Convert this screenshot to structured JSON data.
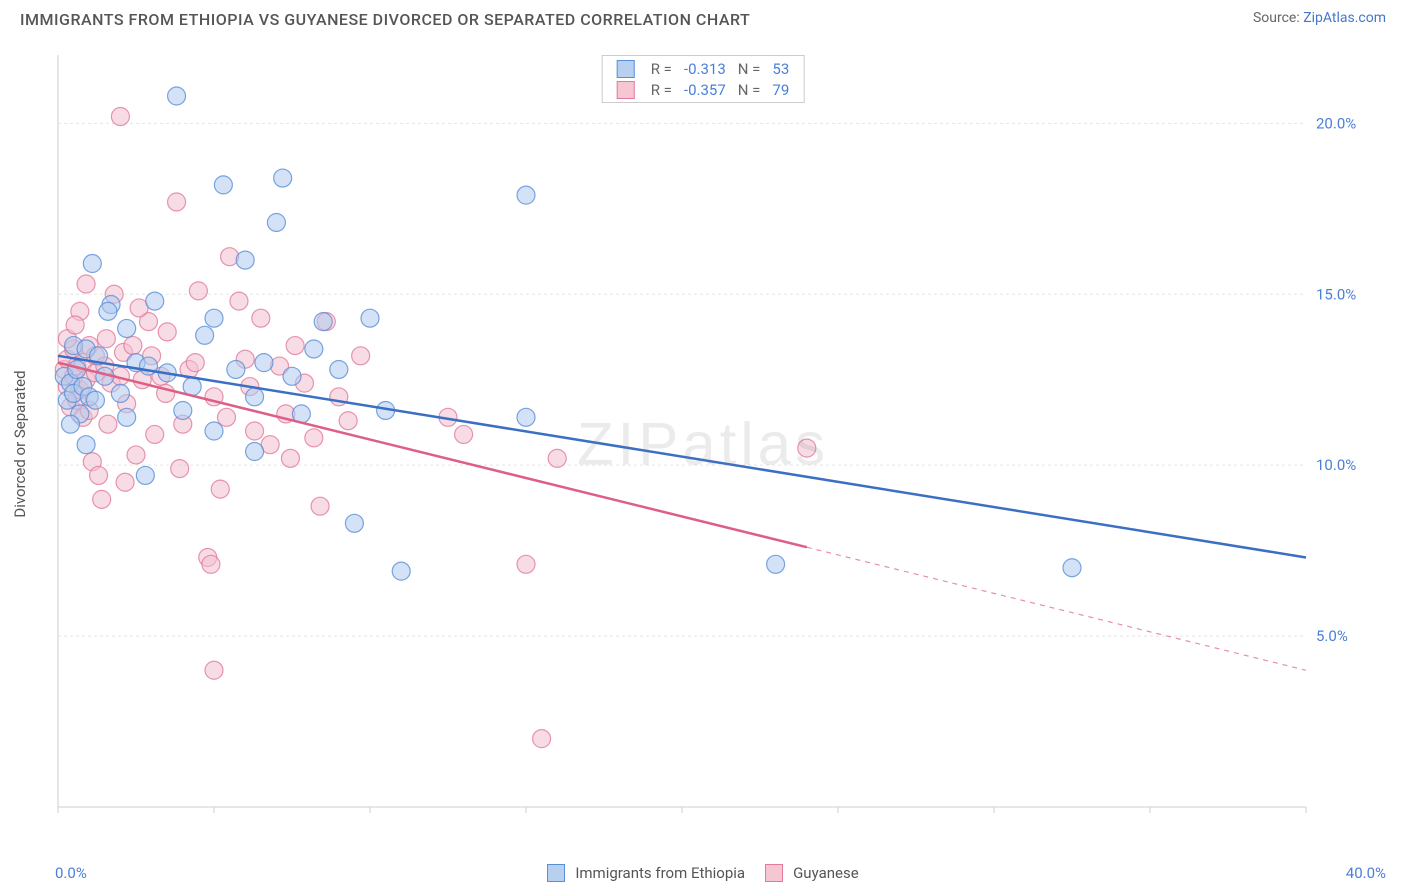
{
  "header": {
    "title": "IMMIGRANTS FROM ETHIOPIA VS GUYANESE DIVORCED OR SEPARATED CORRELATION CHART",
    "source_prefix": "Source: ",
    "source_name": "ZipAtlas.com"
  },
  "chart": {
    "type": "scatter",
    "ylabel": "Divorced or Separated",
    "watermark": "ZIPatlas",
    "background_color": "#ffffff",
    "grid_color": "#e5e5e5",
    "axis_color": "#cccccc",
    "tick_label_color": "#4a7fd8",
    "title_fontsize": 16,
    "label_fontsize": 15,
    "xlim": [
      0,
      40
    ],
    "ylim": [
      0,
      22
    ],
    "xticks": [
      0,
      5,
      10,
      15,
      20,
      25,
      30,
      35,
      40
    ],
    "yticks": [
      5,
      10,
      15,
      20
    ],
    "ytick_labels": [
      "5.0%",
      "10.0%",
      "15.0%",
      "20.0%"
    ],
    "xmin_label": "0.0%",
    "xmax_label": "40.0%",
    "marker_radius": 9,
    "marker_opacity": 0.55,
    "line_width": 2.5,
    "legend_top": {
      "rows": [
        {
          "color_fill": "#b8d0ef",
          "color_stroke": "#5a8fd8",
          "r_label": "R =",
          "r": "-0.313",
          "n_label": "N =",
          "n": "53"
        },
        {
          "color_fill": "#f6c6d3",
          "color_stroke": "#e47a9a",
          "r_label": "R =",
          "r": "-0.357",
          "n_label": "N =",
          "n": "79"
        }
      ]
    },
    "series": [
      {
        "name": "Immigrants from Ethiopia",
        "stroke": "#5a8fd8",
        "fill": "#aecbef",
        "line_color": "#3b6fc4",
        "regression": {
          "x1": 0,
          "y1": 13.2,
          "x2": 40,
          "y2": 7.3,
          "solid_until_x": 40
        },
        "points": [
          [
            0.2,
            12.6
          ],
          [
            0.3,
            11.9
          ],
          [
            0.4,
            12.4
          ],
          [
            0.5,
            13.5
          ],
          [
            0.5,
            12.1
          ],
          [
            0.6,
            12.8
          ],
          [
            0.7,
            11.5
          ],
          [
            0.8,
            12.3
          ],
          [
            0.9,
            13.4
          ],
          [
            1.0,
            12.0
          ],
          [
            1.1,
            15.9
          ],
          [
            1.3,
            13.2
          ],
          [
            1.5,
            12.6
          ],
          [
            1.7,
            14.7
          ],
          [
            2.0,
            12.1
          ],
          [
            2.2,
            11.4
          ],
          [
            2.5,
            13.0
          ],
          [
            2.8,
            9.7
          ],
          [
            3.1,
            14.8
          ],
          [
            3.5,
            12.7
          ],
          [
            3.8,
            20.8
          ],
          [
            4.3,
            12.3
          ],
          [
            4.7,
            13.8
          ],
          [
            5.0,
            11.0
          ],
          [
            5.3,
            18.2
          ],
          [
            5.7,
            12.8
          ],
          [
            6.0,
            16.0
          ],
          [
            6.3,
            10.4
          ],
          [
            6.6,
            13.0
          ],
          [
            7.0,
            17.1
          ],
          [
            7.2,
            18.4
          ],
          [
            7.5,
            12.6
          ],
          [
            7.8,
            11.5
          ],
          [
            8.2,
            13.4
          ],
          [
            8.5,
            14.2
          ],
          [
            9.0,
            12.8
          ],
          [
            9.5,
            8.3
          ],
          [
            10.0,
            14.3
          ],
          [
            10.5,
            11.6
          ],
          [
            11.0,
            6.9
          ],
          [
            15.0,
            11.4
          ],
          [
            15.0,
            17.9
          ],
          [
            23.0,
            7.1
          ],
          [
            32.5,
            7.0
          ],
          [
            0.4,
            11.2
          ],
          [
            0.9,
            10.6
          ],
          [
            1.2,
            11.9
          ],
          [
            1.6,
            14.5
          ],
          [
            2.2,
            14.0
          ],
          [
            2.9,
            12.9
          ],
          [
            4.0,
            11.6
          ],
          [
            5.0,
            14.3
          ],
          [
            6.3,
            12.0
          ]
        ]
      },
      {
        "name": "Guyanese",
        "stroke": "#e47a9a",
        "fill": "#f3c0cf",
        "line_color": "#dd5f86",
        "regression": {
          "x1": 0,
          "y1": 13.0,
          "x2": 40,
          "y2": 4.0,
          "solid_until_x": 24
        },
        "points": [
          [
            0.2,
            12.8
          ],
          [
            0.3,
            12.3
          ],
          [
            0.3,
            13.1
          ],
          [
            0.4,
            11.7
          ],
          [
            0.5,
            12.6
          ],
          [
            0.5,
            13.4
          ],
          [
            0.6,
            11.9
          ],
          [
            0.6,
            12.9
          ],
          [
            0.7,
            12.2
          ],
          [
            0.7,
            14.5
          ],
          [
            0.8,
            13.0
          ],
          [
            0.8,
            11.4
          ],
          [
            0.9,
            12.5
          ],
          [
            1.0,
            13.5
          ],
          [
            1.0,
            11.6
          ],
          [
            1.1,
            10.1
          ],
          [
            1.2,
            12.7
          ],
          [
            1.2,
            13.2
          ],
          [
            1.4,
            9.0
          ],
          [
            1.5,
            12.9
          ],
          [
            1.6,
            11.2
          ],
          [
            1.7,
            12.4
          ],
          [
            1.8,
            15.0
          ],
          [
            2.0,
            20.2
          ],
          [
            2.0,
            12.6
          ],
          [
            2.1,
            13.3
          ],
          [
            2.2,
            11.8
          ],
          [
            2.4,
            13.5
          ],
          [
            2.5,
            10.3
          ],
          [
            2.7,
            12.5
          ],
          [
            2.9,
            14.2
          ],
          [
            3.1,
            10.9
          ],
          [
            3.3,
            12.6
          ],
          [
            3.5,
            13.9
          ],
          [
            3.8,
            17.7
          ],
          [
            4.0,
            11.2
          ],
          [
            4.2,
            12.8
          ],
          [
            4.5,
            15.1
          ],
          [
            4.8,
            7.3
          ],
          [
            5.0,
            12.0
          ],
          [
            5.0,
            4.0
          ],
          [
            5.2,
            9.3
          ],
          [
            5.5,
            16.1
          ],
          [
            5.8,
            14.8
          ],
          [
            6.0,
            13.1
          ],
          [
            6.3,
            11.0
          ],
          [
            6.5,
            14.3
          ],
          [
            6.8,
            10.6
          ],
          [
            7.1,
            12.9
          ],
          [
            7.3,
            11.5
          ],
          [
            7.6,
            13.5
          ],
          [
            7.9,
            12.4
          ],
          [
            8.2,
            10.8
          ],
          [
            8.6,
            14.2
          ],
          [
            9.0,
            12.0
          ],
          [
            9.3,
            11.3
          ],
          [
            9.7,
            13.2
          ],
          [
            12.5,
            11.4
          ],
          [
            13.0,
            10.9
          ],
          [
            15.0,
            7.1
          ],
          [
            15.5,
            2.0
          ],
          [
            16.0,
            10.2
          ],
          [
            24.0,
            10.5
          ],
          [
            0.3,
            13.7
          ],
          [
            0.55,
            14.1
          ],
          [
            0.9,
            15.3
          ],
          [
            1.3,
            9.7
          ],
          [
            1.55,
            13.7
          ],
          [
            2.15,
            9.5
          ],
          [
            2.6,
            14.6
          ],
          [
            3.0,
            13.2
          ],
          [
            3.45,
            12.1
          ],
          [
            3.9,
            9.9
          ],
          [
            4.4,
            13.0
          ],
          [
            4.9,
            7.1
          ],
          [
            5.4,
            11.4
          ],
          [
            6.15,
            12.3
          ],
          [
            7.45,
            10.2
          ],
          [
            8.4,
            8.8
          ]
        ]
      }
    ],
    "legend_bottom": [
      {
        "fill": "#b8d0ef",
        "stroke": "#5a8fd8",
        "label": "Immigrants from Ethiopia"
      },
      {
        "fill": "#f6c6d3",
        "stroke": "#e47a9a",
        "label": "Guyanese"
      }
    ]
  }
}
